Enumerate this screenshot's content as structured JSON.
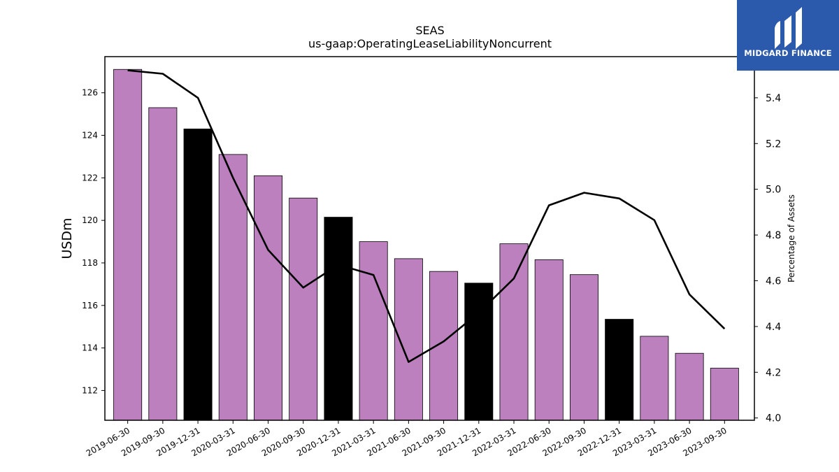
{
  "logo": {
    "text": "MIDGARD FINANCE",
    "bg_color": "#2b5aad"
  },
  "chart_data": {
    "type": "bar",
    "title": "SEAS",
    "subtitle": "us-gaap:OperatingLeaseLiabilityNoncurrent",
    "ylabel": "USDm",
    "y2label": "Percentage of Assets",
    "ylim": [
      110.6,
      127.7
    ],
    "y2lim": [
      3.99,
      5.58
    ],
    "yticks": [
      112,
      114,
      116,
      118,
      120,
      122,
      124,
      126
    ],
    "y2ticks": [
      4.0,
      4.2,
      4.4,
      4.6,
      4.8,
      5.0,
      5.2,
      5.4
    ],
    "categories": [
      "2019-06-30",
      "2019-09-30",
      "2019-12-31",
      "2020-03-31",
      "2020-06-30",
      "2020-09-30",
      "2020-12-31",
      "2021-03-31",
      "2021-06-30",
      "2021-09-30",
      "2021-12-31",
      "2022-03-31",
      "2022-06-30",
      "2022-09-30",
      "2022-12-31",
      "2023-03-31",
      "2023-06-30",
      "2023-09-30"
    ],
    "series": [
      {
        "type": "bar",
        "values": [
          127.1,
          125.3,
          124.3,
          123.1,
          122.1,
          121.05,
          120.15,
          119.0,
          118.2,
          117.6,
          117.05,
          118.9,
          118.15,
          117.45,
          115.35,
          114.55,
          113.75,
          113.05
        ]
      },
      {
        "type": "line",
        "axis": "right",
        "values": [
          5.52,
          5.505,
          5.4,
          5.05,
          4.735,
          4.57,
          4.67,
          4.625,
          4.245,
          4.335,
          4.46,
          4.61,
          4.93,
          4.985,
          4.96,
          4.865,
          4.54,
          4.39
        ]
      }
    ],
    "bar_colors": [
      "#bb80bd",
      "#bb80bd",
      "#000000",
      "#bb80bd",
      "#bb80bd",
      "#bb80bd",
      "#000000",
      "#bb80bd",
      "#bb80bd",
      "#bb80bd",
      "#000000",
      "#bb80bd",
      "#bb80bd",
      "#bb80bd",
      "#000000",
      "#bb80bd",
      "#bb80bd",
      "#bb80bd"
    ],
    "line_color": "#000000",
    "grid": false,
    "legend": "none"
  }
}
